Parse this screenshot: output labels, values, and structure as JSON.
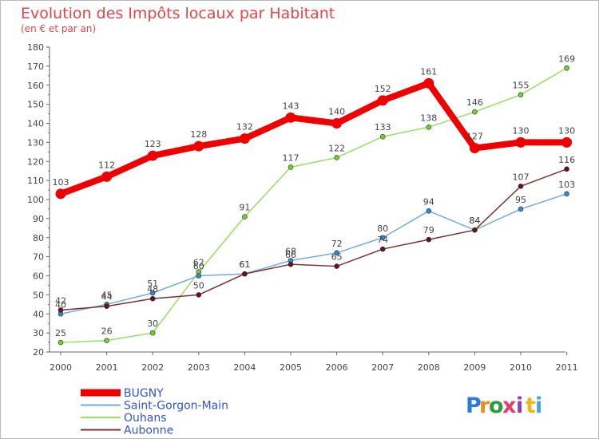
{
  "chart_data": {
    "type": "line",
    "title": "Evolution des Impôts locaux par Habitant",
    "subtitle": "(en € et par an)",
    "xlabel": "",
    "ylabel": "",
    "ylim": [
      20,
      180
    ],
    "yticks": [
      20,
      30,
      40,
      50,
      60,
      70,
      80,
      90,
      100,
      110,
      120,
      130,
      140,
      150,
      160,
      170,
      180
    ],
    "categories": [
      "2000",
      "2001",
      "2002",
      "2003",
      "2004",
      "2005",
      "2006",
      "2007",
      "2008",
      "2009",
      "2010",
      "2011"
    ],
    "grid": false,
    "legend_position": "bottom-left",
    "series": [
      {
        "name": "Ouhans",
        "color": "#99dd66",
        "marker": "#77cc33",
        "values": [
          25,
          26,
          30,
          62,
          91,
          117,
          122,
          133,
          138,
          146,
          155,
          169
        ]
      },
      {
        "name": "Saint-Gorgon-Main",
        "color": "#77aadd",
        "marker": "#3388cc",
        "values": [
          40,
          45,
          51,
          60,
          61,
          68,
          72,
          80,
          94,
          84,
          95,
          103
        ]
      },
      {
        "name": "Aubonne",
        "color": "#773333",
        "marker": "#661122",
        "values": [
          42,
          44,
          48,
          50,
          61,
          66,
          65,
          74,
          79,
          84,
          107,
          116
        ]
      },
      {
        "name": "BUGNY",
        "color": "#ee0000",
        "marker": "#ee0000",
        "values": [
          103,
          112,
          123,
          128,
          132,
          143,
          140,
          152,
          161,
          127,
          130,
          130
        ]
      }
    ],
    "legend_order": [
      "BUGNY",
      "Saint-Gorgon-Main",
      "Ouhans",
      "Aubonne"
    ]
  },
  "brand": {
    "letters": [
      "P",
      "r",
      "o",
      "x",
      "i",
      "t",
      "i"
    ],
    "colors": [
      "#2b7bd8",
      "#f08a1c",
      "#2b9b3a",
      "#e83a6a",
      "#8a3fb8",
      "#f0b41c",
      "#3aa8d8"
    ]
  },
  "colors": {
    "title": "#e0464a",
    "axis": "#666666",
    "frame": "#bbbbbb"
  }
}
